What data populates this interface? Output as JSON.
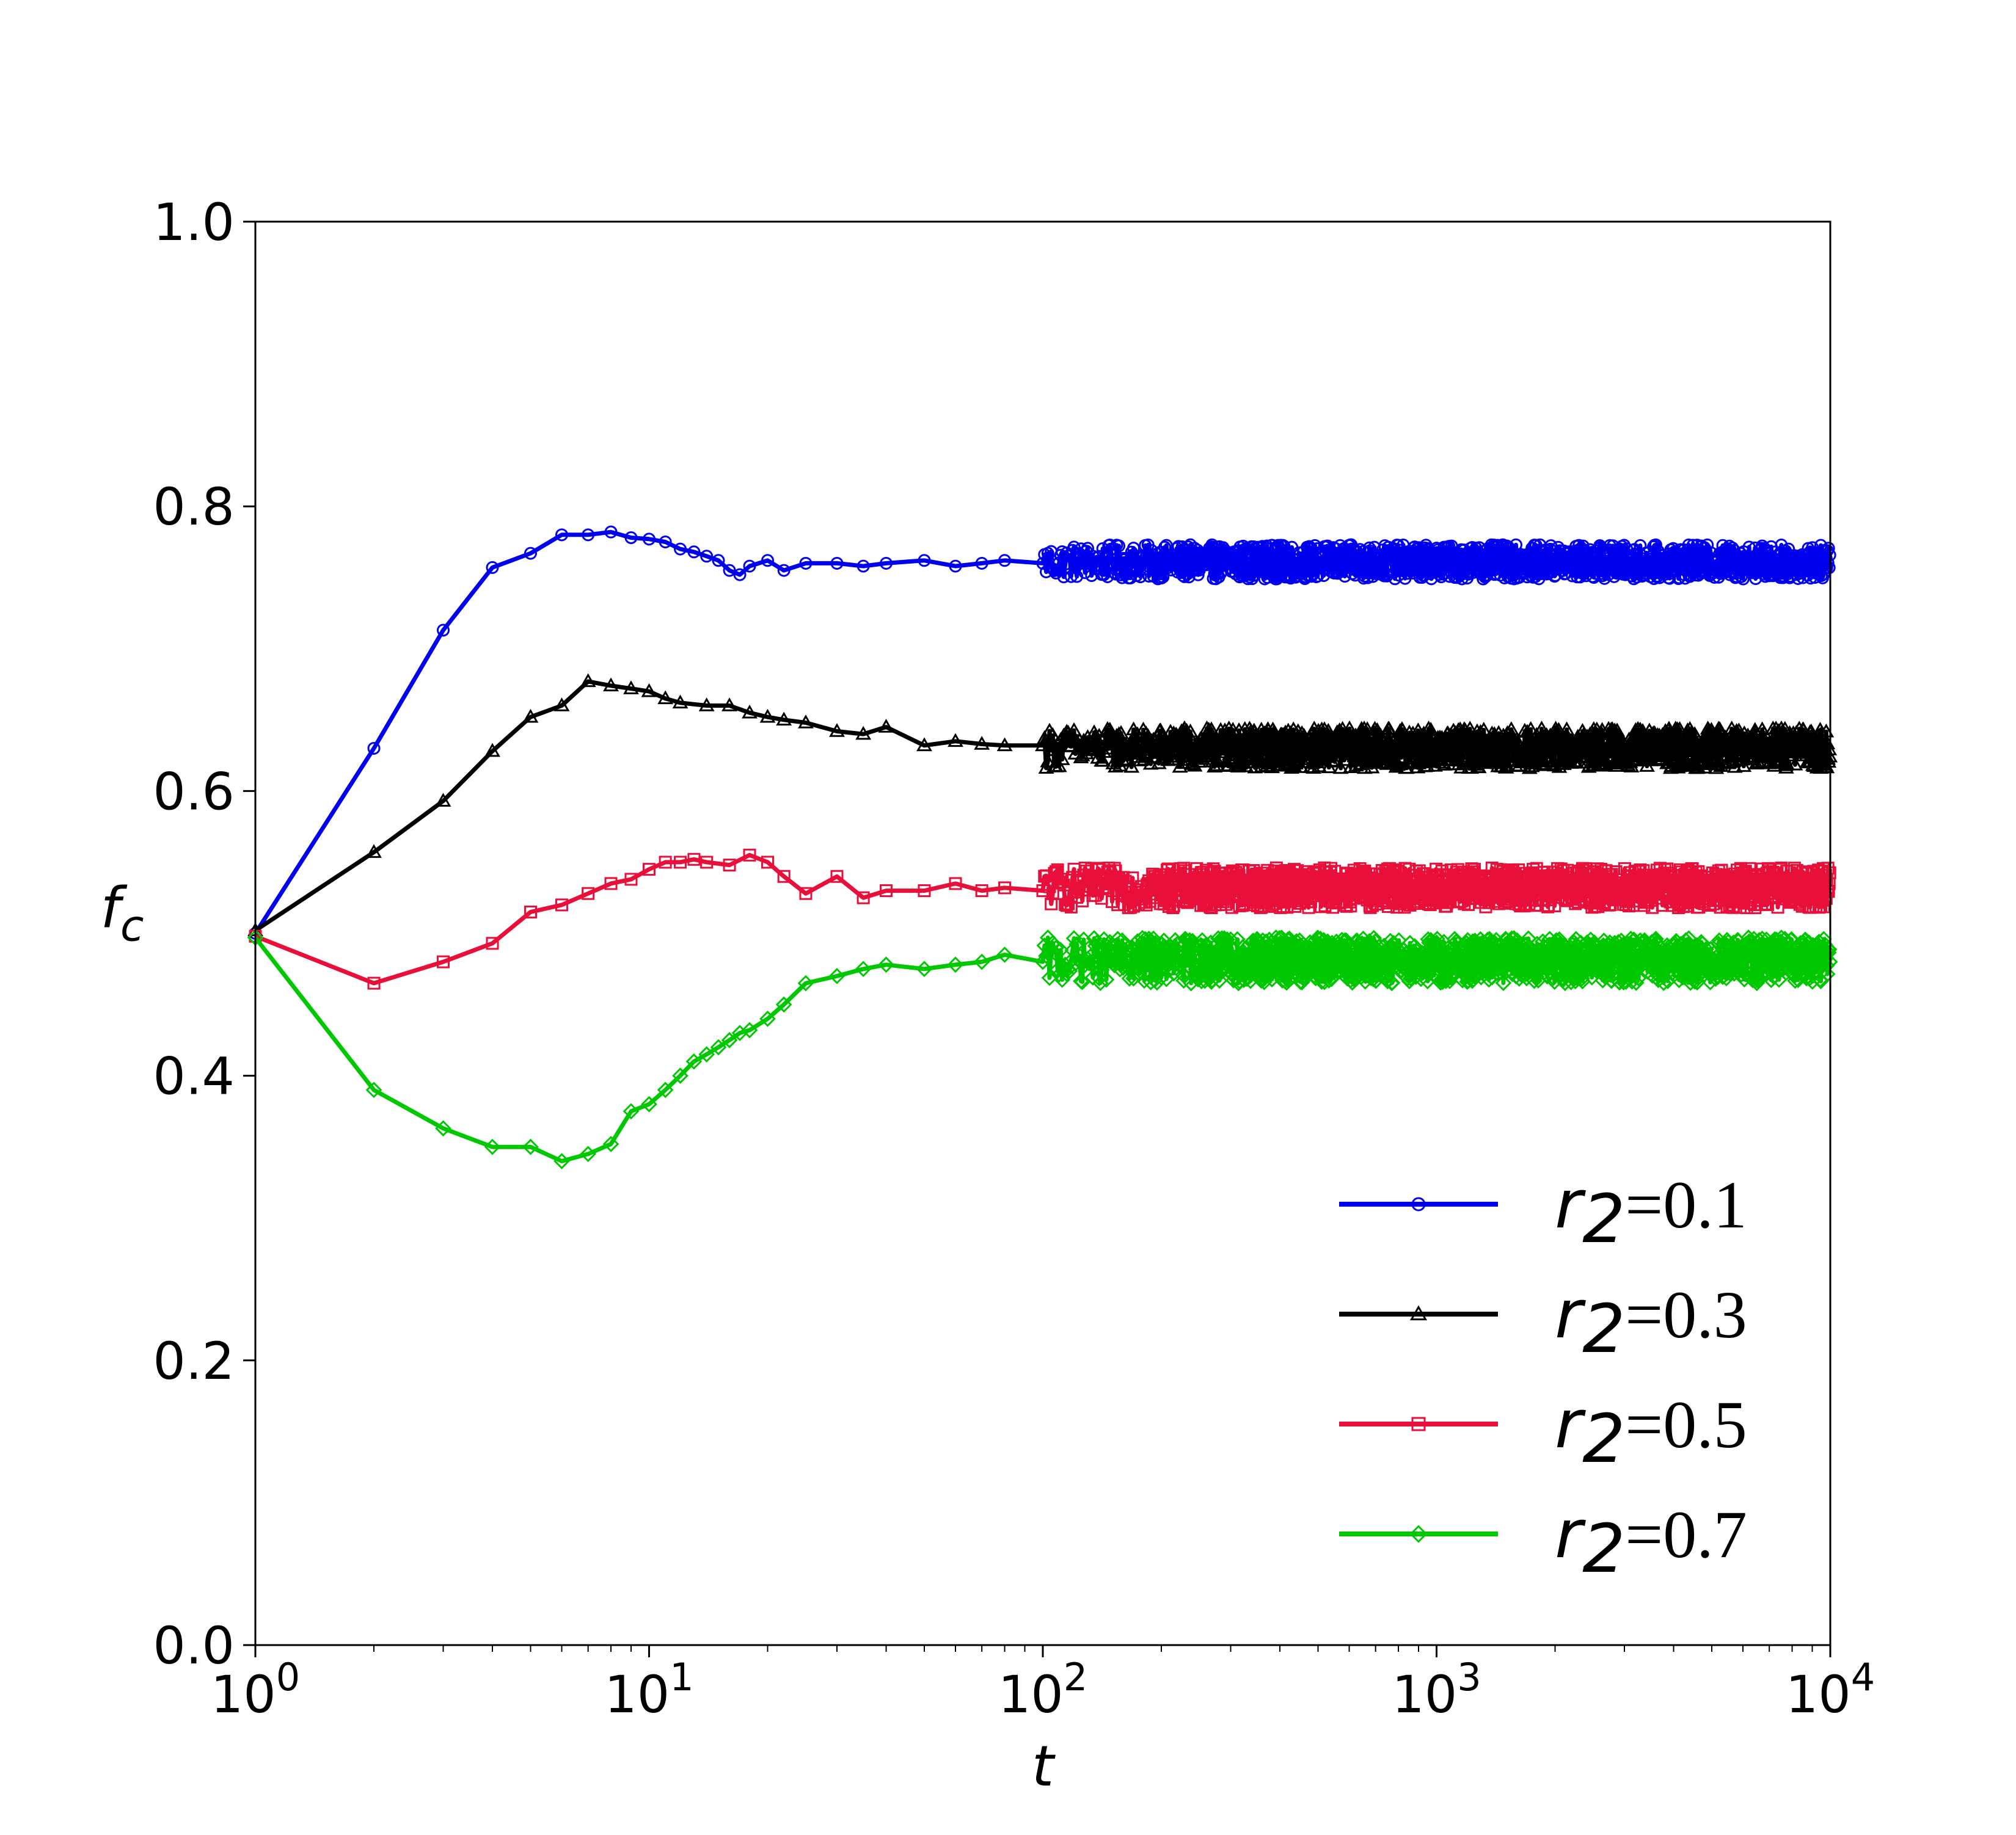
{
  "chart_data": {
    "type": "line",
    "x_scale": "log",
    "xlim": [
      1,
      10000
    ],
    "ylim": [
      0.0,
      1.0
    ],
    "xlabel": "t",
    "ylabel_base": "f",
    "ylabel_sub": "c",
    "x_ticks": [
      {
        "value": 1,
        "base": "10",
        "exp": "0"
      },
      {
        "value": 10,
        "base": "10",
        "exp": "1"
      },
      {
        "value": 100,
        "base": "10",
        "exp": "2"
      },
      {
        "value": 1000,
        "base": "10",
        "exp": "3"
      },
      {
        "value": 10000,
        "base": "10",
        "exp": "4"
      }
    ],
    "y_ticks": [
      {
        "value": 0.0,
        "label": "0.0"
      },
      {
        "value": 0.2,
        "label": "0.2"
      },
      {
        "value": 0.4,
        "label": "0.4"
      },
      {
        "value": 0.6,
        "label": "0.6"
      },
      {
        "value": 0.8,
        "label": "0.8"
      },
      {
        "value": 1.0,
        "label": "1.0"
      }
    ],
    "grid": false,
    "legend_position": "lower-right",
    "series": [
      {
        "name": "r2=0.1",
        "label_var": "r",
        "label_sub": "2",
        "label_rest": "=0.1",
        "color": "#0000ee",
        "marker": "circle",
        "early": [
          [
            1,
            0.5
          ],
          [
            2,
            0.63
          ],
          [
            3,
            0.713
          ],
          [
            4,
            0.757
          ],
          [
            5,
            0.767
          ],
          [
            6,
            0.78
          ],
          [
            7,
            0.78
          ],
          [
            8,
            0.782
          ],
          [
            9,
            0.778
          ],
          [
            10,
            0.777
          ],
          [
            11,
            0.775
          ],
          [
            12,
            0.77
          ],
          [
            13,
            0.768
          ],
          [
            14,
            0.765
          ],
          [
            15,
            0.762
          ],
          [
            16,
            0.755
          ],
          [
            17,
            0.752
          ],
          [
            18,
            0.758
          ],
          [
            20,
            0.762
          ],
          [
            22,
            0.755
          ],
          [
            25,
            0.76
          ],
          [
            30,
            0.76
          ],
          [
            35,
            0.758
          ],
          [
            40,
            0.76
          ],
          [
            50,
            0.762
          ],
          [
            60,
            0.758
          ],
          [
            70,
            0.76
          ],
          [
            80,
            0.762
          ],
          [
            100,
            0.76
          ]
        ],
        "steady": {
          "from": 100,
          "mean": 0.761,
          "amplitude": 0.012
        }
      },
      {
        "name": "r2=0.3",
        "label_var": "r",
        "label_sub": "2",
        "label_rest": "=0.3",
        "color": "#000000",
        "marker": "triangle",
        "early": [
          [
            1,
            0.502
          ],
          [
            2,
            0.557
          ],
          [
            3,
            0.593
          ],
          [
            4,
            0.628
          ],
          [
            5,
            0.652
          ],
          [
            6,
            0.66
          ],
          [
            7,
            0.677
          ],
          [
            8,
            0.674
          ],
          [
            9,
            0.672
          ],
          [
            10,
            0.67
          ],
          [
            11,
            0.665
          ],
          [
            12,
            0.662
          ],
          [
            14,
            0.66
          ],
          [
            16,
            0.66
          ],
          [
            18,
            0.655
          ],
          [
            20,
            0.652
          ],
          [
            22,
            0.65
          ],
          [
            25,
            0.648
          ],
          [
            30,
            0.642
          ],
          [
            35,
            0.64
          ],
          [
            40,
            0.645
          ],
          [
            50,
            0.632
          ],
          [
            60,
            0.635
          ],
          [
            70,
            0.633
          ],
          [
            80,
            0.632
          ],
          [
            100,
            0.632
          ]
        ],
        "steady": {
          "from": 100,
          "mean": 0.63,
          "amplitude": 0.014
        }
      },
      {
        "name": "r2=0.5",
        "label_var": "r",
        "label_sub": "2",
        "label_rest": "=0.5",
        "color": "#e8103a",
        "marker": "square",
        "early": [
          [
            1,
            0.498
          ],
          [
            2,
            0.465
          ],
          [
            3,
            0.48
          ],
          [
            4,
            0.493
          ],
          [
            5,
            0.515
          ],
          [
            6,
            0.52
          ],
          [
            7,
            0.528
          ],
          [
            8,
            0.535
          ],
          [
            9,
            0.538
          ],
          [
            10,
            0.545
          ],
          [
            11,
            0.55
          ],
          [
            12,
            0.55
          ],
          [
            13,
            0.552
          ],
          [
            14,
            0.55
          ],
          [
            16,
            0.548
          ],
          [
            18,
            0.555
          ],
          [
            20,
            0.55
          ],
          [
            22,
            0.54
          ],
          [
            25,
            0.528
          ],
          [
            30,
            0.54
          ],
          [
            35,
            0.525
          ],
          [
            40,
            0.53
          ],
          [
            50,
            0.53
          ],
          [
            60,
            0.535
          ],
          [
            70,
            0.53
          ],
          [
            80,
            0.532
          ],
          [
            100,
            0.53
          ]
        ],
        "steady": {
          "from": 100,
          "mean": 0.532,
          "amplitude": 0.014
        }
      },
      {
        "name": "r2=0.7",
        "label_var": "r",
        "label_sub": "2",
        "label_rest": "=0.7",
        "color": "#00c800",
        "marker": "diamond",
        "early": [
          [
            1,
            0.497
          ],
          [
            2,
            0.39
          ],
          [
            3,
            0.363
          ],
          [
            4,
            0.35
          ],
          [
            5,
            0.35
          ],
          [
            6,
            0.34
          ],
          [
            7,
            0.345
          ],
          [
            8,
            0.352
          ],
          [
            9,
            0.375
          ],
          [
            10,
            0.38
          ],
          [
            11,
            0.39
          ],
          [
            12,
            0.4
          ],
          [
            13,
            0.41
          ],
          [
            14,
            0.415
          ],
          [
            15,
            0.42
          ],
          [
            16,
            0.425
          ],
          [
            17,
            0.43
          ],
          [
            18,
            0.432
          ],
          [
            20,
            0.44
          ],
          [
            22,
            0.45
          ],
          [
            25,
            0.465
          ],
          [
            30,
            0.47
          ],
          [
            35,
            0.475
          ],
          [
            40,
            0.478
          ],
          [
            50,
            0.475
          ],
          [
            60,
            0.478
          ],
          [
            70,
            0.48
          ],
          [
            80,
            0.485
          ],
          [
            100,
            0.48
          ]
        ],
        "steady": {
          "from": 100,
          "mean": 0.481,
          "amplitude": 0.016
        }
      }
    ]
  }
}
